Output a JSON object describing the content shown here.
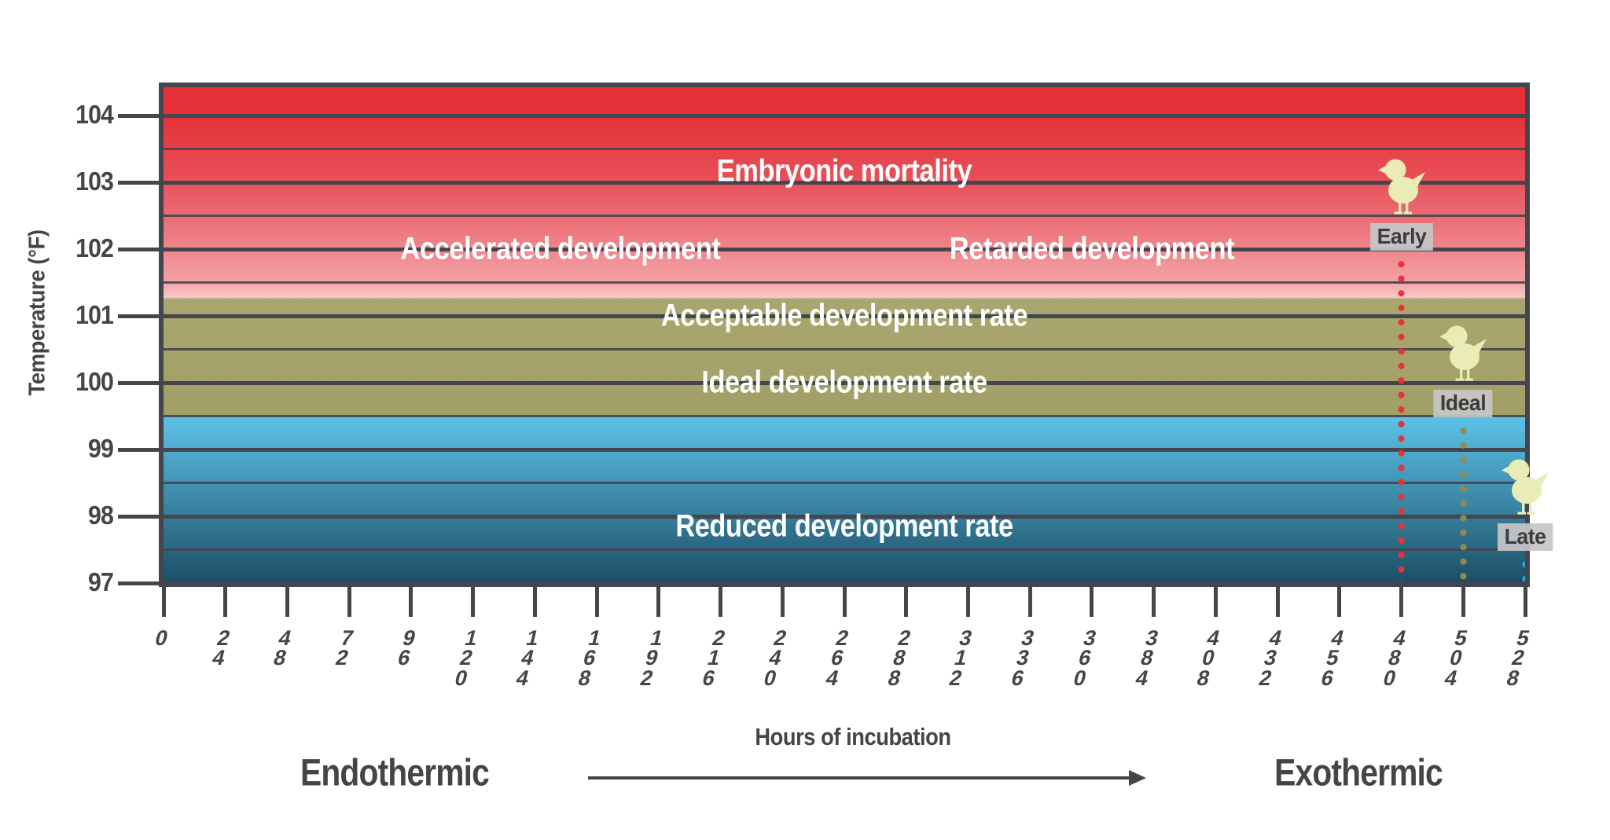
{
  "chart_data": {
    "type": "area",
    "title": "",
    "xlabel": "Hours of incubation",
    "ylabel": "Temperature (°F)",
    "xlim": [
      0,
      528
    ],
    "ylim": [
      97,
      104.5
    ],
    "x_ticks": [
      0,
      24,
      48,
      72,
      96,
      120,
      144,
      168,
      192,
      216,
      240,
      264,
      288,
      312,
      336,
      360,
      384,
      408,
      432,
      456,
      480,
      504,
      528
    ],
    "y_ticks": [
      104,
      103,
      102,
      101,
      100,
      99,
      98,
      97
    ],
    "y_grid_step": 0.5,
    "grid_on": true,
    "zones": [
      {
        "label": "Embryonic mortality",
        "temp_range": [
          103,
          104.5
        ],
        "label_hours": 264,
        "label_temp": 103.17
      },
      {
        "label": "Accelerated development",
        "temp_range": [
          101.25,
          103
        ],
        "label_hours": 154,
        "label_temp": 102.0
      },
      {
        "label": "Retarded development",
        "temp_range": [
          101.25,
          103
        ],
        "label_hours": 360,
        "label_temp": 102.0
      },
      {
        "label": "Acceptable development rate",
        "temp_range": [
          99.5,
          101.25
        ],
        "label_hours": 264,
        "label_temp": 101.0
      },
      {
        "label": "Ideal development rate",
        "temp_range": [
          99.5,
          101.25
        ],
        "label_hours": 264,
        "label_temp": 100.0
      },
      {
        "label": "Reduced development rate",
        "temp_range": [
          97,
          99.5
        ],
        "label_hours": 264,
        "label_temp": 97.85
      }
    ],
    "hatch_markers": [
      {
        "label": "Early",
        "hours": 480,
        "temp_line": 102.5,
        "dot_color": "#e73238"
      },
      {
        "label": "Ideal",
        "hours": 504,
        "temp_line": 100.0,
        "dot_color": "#8f8d4d"
      },
      {
        "label": "Late",
        "hours": 528,
        "temp_line": 98.0,
        "dot_color": "#29abe2"
      }
    ],
    "footer": {
      "left": "Endothermic",
      "center": "Hours of incubation",
      "right": "Exothermic"
    },
    "palette": {
      "red_top": "#e63139",
      "red_103": "#e8515a",
      "pink_102": "#ef868c",
      "pink_101_5": "#f3a3a7",
      "pink_light": "#f8c9c8",
      "olive_top": "#a8a76f",
      "olive_bottom": "#a19f66",
      "blue_top": "#5cc2e8",
      "blue_bottom": "#1c4f66",
      "grid": "#45454d",
      "axis_text": "#454549",
      "zone_text": "#ffffff",
      "chick": "#e9ecb4",
      "marker_box_bg": "#c6c6c6",
      "marker_box_text": "#3c3c3c"
    }
  }
}
